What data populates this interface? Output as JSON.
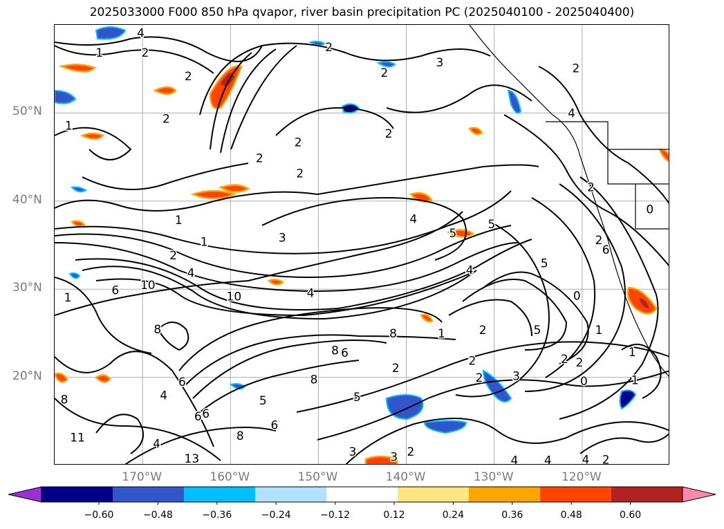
{
  "title": "2025033000 F000 850 hPa qvapor, river basin precipitation PC (2025040100 - 2025040400)",
  "lat_labels": [
    {
      "text": "50°N",
      "lat": 50
    },
    {
      "text": "40°N",
      "lat": 40
    },
    {
      "text": "30°N",
      "lat": 30
    },
    {
      "text": "20°N",
      "lat": 20
    }
  ],
  "lon_labels": [
    {
      "text": "170°W",
      "lon": -170
    },
    {
      "text": "160°W",
      "lon": -160
    },
    {
      "text": "150°W",
      "lon": -150
    },
    {
      "text": "140°W",
      "lon": -140
    },
    {
      "text": "130°W",
      "lon": -130
    },
    {
      "text": "120°W",
      "lon": -120
    }
  ],
  "map_extent": {
    "lon_min": -180,
    "lon_max": -110,
    "lat_min": 10,
    "lat_max": 60
  },
  "colorbar": {
    "colors": [
      "#9b30d8",
      "#00008b",
      "#3355cc",
      "#00bfff",
      "#b0e2ff",
      "#ffffff",
      "#ffe680",
      "#ffa500",
      "#ff4500",
      "#b22222",
      "#ff88aa"
    ],
    "tick_labels": [
      "−0.60",
      "−0.48",
      "−0.36",
      "−0.24",
      "−0.12",
      "0.12",
      "0.24",
      "0.36",
      "0.48",
      "0.60"
    ]
  },
  "contour_labels": [
    {
      "text": "4",
      "lon": -170.2,
      "lat": 59.0
    },
    {
      "text": "1",
      "lon": -174.9,
      "lat": 56.8
    },
    {
      "text": "2",
      "lon": -169.7,
      "lat": 56.8
    },
    {
      "text": "2",
      "lon": -164.8,
      "lat": 54.1
    },
    {
      "text": "1",
      "lon": -178.4,
      "lat": 48.5
    },
    {
      "text": "2",
      "lon": -167.3,
      "lat": 49.3
    },
    {
      "text": "2",
      "lon": -148.8,
      "lat": 57.4
    },
    {
      "text": "2",
      "lon": -142.5,
      "lat": 54.5
    },
    {
      "text": "3",
      "lon": -136.2,
      "lat": 55.7
    },
    {
      "text": "2",
      "lon": -120.7,
      "lat": 55.0
    },
    {
      "text": "4",
      "lon": -121.2,
      "lat": 49.9
    },
    {
      "text": "2",
      "lon": -142.0,
      "lat": 47.6
    },
    {
      "text": "2",
      "lon": -152.3,
      "lat": 46.6
    },
    {
      "text": "2",
      "lon": -156.7,
      "lat": 44.8
    },
    {
      "text": "2",
      "lon": -152.1,
      "lat": 43.1
    },
    {
      "text": "1",
      "lon": -165.9,
      "lat": 37.8
    },
    {
      "text": "1",
      "lon": -163.0,
      "lat": 35.3
    },
    {
      "text": "3",
      "lon": -154.1,
      "lat": 35.8
    },
    {
      "text": "5",
      "lon": -130.3,
      "lat": 37.3
    },
    {
      "text": "5",
      "lon": -134.7,
      "lat": 36.3
    },
    {
      "text": "4",
      "lon": -139.2,
      "lat": 37.9
    },
    {
      "text": "2",
      "lon": -166.5,
      "lat": 33.8
    },
    {
      "text": "4",
      "lon": -164.5,
      "lat": 31.8
    },
    {
      "text": "10",
      "lon": -169.4,
      "lat": 30.4
    },
    {
      "text": "10",
      "lon": -159.6,
      "lat": 29.1
    },
    {
      "text": "4",
      "lon": -150.9,
      "lat": 29.5
    },
    {
      "text": "1",
      "lon": -178.5,
      "lat": 29.0
    },
    {
      "text": "6",
      "lon": -173.1,
      "lat": 29.8
    },
    {
      "text": "8",
      "lon": -168.3,
      "lat": 25.4
    },
    {
      "text": "8",
      "lon": -148.1,
      "lat": 23.0
    },
    {
      "text": "8",
      "lon": -150.5,
      "lat": 19.7
    },
    {
      "text": "6",
      "lon": -147.0,
      "lat": 22.7
    },
    {
      "text": "8",
      "lon": -141.5,
      "lat": 24.9
    },
    {
      "text": "4",
      "lon": -132.8,
      "lat": 32.1
    },
    {
      "text": "5",
      "lon": -125.1,
      "lat": 25.3
    },
    {
      "text": "2",
      "lon": -131.3,
      "lat": 25.3
    },
    {
      "text": "2",
      "lon": -141.2,
      "lat": 21.0
    },
    {
      "text": "2",
      "lon": -132.5,
      "lat": 21.8
    },
    {
      "text": "2",
      "lon": -131.7,
      "lat": 19.9
    },
    {
      "text": "3",
      "lon": -127.5,
      "lat": 20.1
    },
    {
      "text": "2",
      "lon": -122.0,
      "lat": 22.0
    },
    {
      "text": "1",
      "lon": -118.1,
      "lat": 25.3
    },
    {
      "text": "2",
      "lon": -120.3,
      "lat": 21.6
    },
    {
      "text": "0",
      "lon": -119.8,
      "lat": 19.5
    },
    {
      "text": "1",
      "lon": -114.3,
      "lat": 22.8
    },
    {
      "text": "1",
      "lon": -114.0,
      "lat": 19.6
    },
    {
      "text": "6",
      "lon": -117.3,
      "lat": 34.4
    },
    {
      "text": "5",
      "lon": -124.3,
      "lat": 32.9
    },
    {
      "text": "2",
      "lon": -118.1,
      "lat": 35.5
    },
    {
      "text": "0",
      "lon": -120.6,
      "lat": 29.2
    },
    {
      "text": "2",
      "lon": -119.0,
      "lat": 41.5
    },
    {
      "text": "0",
      "lon": -112.3,
      "lat": 39.0
    },
    {
      "text": "6",
      "lon": -163.7,
      "lat": 15.5
    },
    {
      "text": "5",
      "lon": -156.3,
      "lat": 17.3
    },
    {
      "text": "6",
      "lon": -155.0,
      "lat": 14.5
    },
    {
      "text": "4",
      "lon": -167.6,
      "lat": 17.9
    },
    {
      "text": "8",
      "lon": -178.9,
      "lat": 17.4
    },
    {
      "text": "11",
      "lon": -177.4,
      "lat": 13.1
    },
    {
      "text": "13",
      "lon": -164.4,
      "lat": 10.7
    },
    {
      "text": "4",
      "lon": -168.4,
      "lat": 12.4
    },
    {
      "text": "8",
      "lon": -158.9,
      "lat": 13.3
    },
    {
      "text": "6",
      "lon": -165.5,
      "lat": 19.4
    },
    {
      "text": "6",
      "lon": -162.8,
      "lat": 15.8
    },
    {
      "text": "5",
      "lon": -145.6,
      "lat": 17.7
    },
    {
      "text": "3",
      "lon": -146.1,
      "lat": 11.5
    },
    {
      "text": "3",
      "lon": -141.4,
      "lat": 10.9
    },
    {
      "text": "2",
      "lon": -139.5,
      "lat": 11.5
    },
    {
      "text": "4",
      "lon": -127.7,
      "lat": 10.5
    },
    {
      "text": "4",
      "lon": -123.9,
      "lat": 10.5
    },
    {
      "text": "4",
      "lon": -119.6,
      "lat": 10.6
    },
    {
      "text": "2",
      "lon": -117.3,
      "lat": 10.6
    },
    {
      "text": "1",
      "lon": -136.0,
      "lat": 24.9
    }
  ]
}
